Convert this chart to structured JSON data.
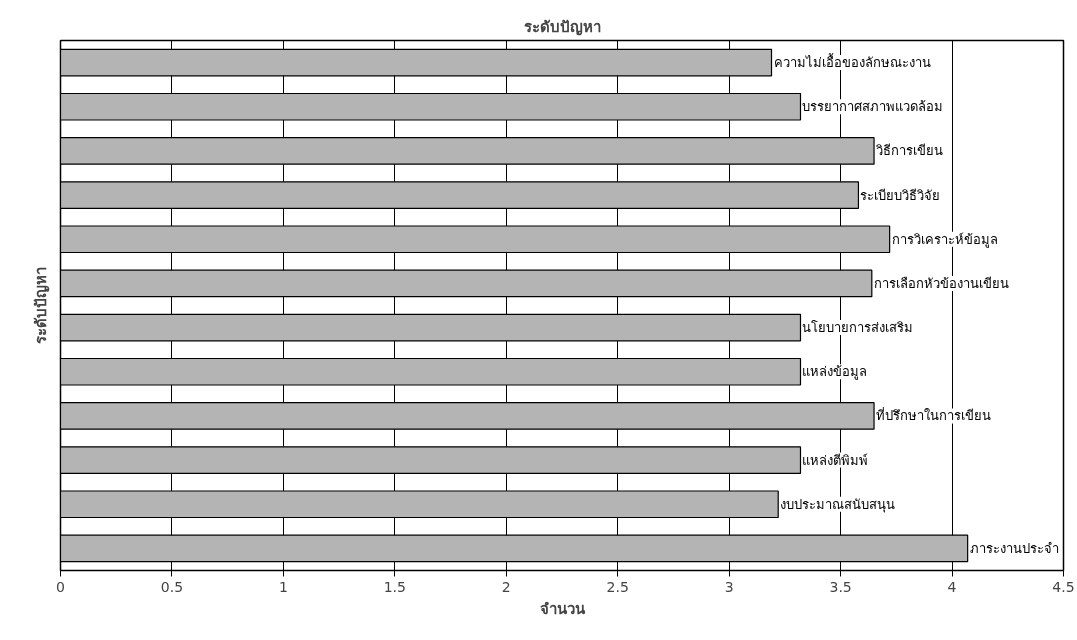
{
  "chart_data": {
    "type": "bar",
    "orientation": "horizontal",
    "title": "ระดับปัญหา",
    "xlabel": "จำนวน",
    "ylabel": "ระดับปัญหา",
    "categories": [
      "ความไม่เอื้อของลักษณะงาน",
      "บรรยากาศสภาพแวดล้อม",
      "วิธีการเขียน",
      "ระเบียบวิธีวิจัย",
      "การวิเคราะห์ข้อมูล",
      "การเลือกหัวข้องานเขียน",
      "นโยบายการส่งเสริม",
      "แหล่งข้อมูล",
      "ที่ปรึกษาในการเขียน",
      "แหล่งตีพิมพ์",
      "งบประมาณสนับสนุน",
      "ภาระงานประจำ"
    ],
    "values": [
      3.19,
      3.32,
      3.65,
      3.58,
      3.72,
      3.64,
      3.32,
      3.32,
      3.65,
      3.32,
      3.22,
      4.07
    ],
    "color": "#b4b4b4",
    "xlim": [
      0,
      4.5
    ],
    "xticks": [
      0,
      0.5,
      1,
      1.5,
      2,
      2.5,
      3,
      3.5,
      4,
      4.5
    ],
    "grid": "x",
    "tick_labels": "x"
  }
}
